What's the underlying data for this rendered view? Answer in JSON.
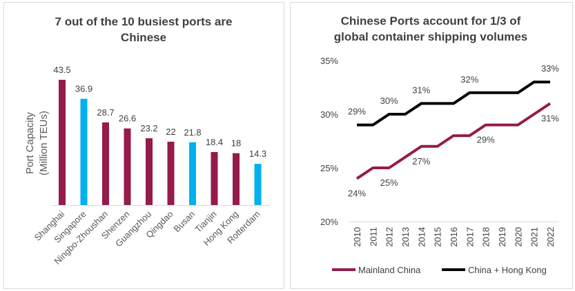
{
  "chart_data": [
    {
      "type": "bar",
      "title": "7 out of the 10 busiest ports are Chinese",
      "ylabel": "Port Capacity (Million TEUs)",
      "ylabel_lines": [
        "Port Capacity",
        "(Million TEUs)"
      ],
      "categories": [
        "Shanghai",
        "Singapore",
        "Ningbo-Zhoushan",
        "Shenzen",
        "Guangzhou",
        "Qingdao",
        "Busan",
        "Tianjin",
        "Hong Kong",
        "Rotterdam"
      ],
      "values": [
        43.5,
        36.9,
        28.7,
        26.6,
        23.2,
        22,
        21.8,
        18.4,
        18,
        14.3
      ],
      "value_labels": [
        "43.5",
        "36.9",
        "28.7",
        "26.6",
        "23.2",
        "22",
        "21.8",
        "18.4",
        "18",
        "14.3"
      ],
      "is_chinese": [
        true,
        false,
        true,
        true,
        true,
        true,
        false,
        true,
        true,
        false
      ],
      "colors": {
        "chinese": "#951B4A",
        "other": "#00B0F0"
      },
      "ylim": [
        0,
        43.5
      ],
      "grid": false
    },
    {
      "type": "line",
      "title": "Chinese Ports account for 1/3 of global container shipping volumes",
      "title_lines": [
        "Chinese Ports account for 1/3 of",
        "global container shipping volumes"
      ],
      "x": [
        2010,
        2011,
        2012,
        2013,
        2014,
        2015,
        2016,
        2017,
        2018,
        2019,
        2020,
        2021,
        2022
      ],
      "ylim": [
        20,
        35
      ],
      "yticks": [
        "20%",
        "25%",
        "30%",
        "35%"
      ],
      "legend": "bottom",
      "series": [
        {
          "name": "Mainland China",
          "color": "#951B4A",
          "values": [
            24,
            25,
            25,
            26,
            27,
            27,
            28,
            28,
            29,
            29,
            29,
            30,
            31
          ],
          "labels": [
            {
              "x": 2010,
              "text": "24%"
            },
            {
              "x": 2012,
              "text": "25%"
            },
            {
              "x": 2014,
              "text": "27%"
            },
            {
              "x": 2018,
              "text": "29%"
            },
            {
              "x": 2022,
              "text": "31%"
            }
          ]
        },
        {
          "name": "China + Hong Kong",
          "color": "#000000",
          "values": [
            29,
            29,
            30,
            30,
            31,
            31,
            31,
            32,
            32,
            32,
            32,
            33,
            33
          ],
          "labels": [
            {
              "x": 2010,
              "text": "29%"
            },
            {
              "x": 2012,
              "text": "30%"
            },
            {
              "x": 2014,
              "text": "31%"
            },
            {
              "x": 2017,
              "text": "32%"
            },
            {
              "x": 2022,
              "text": "33%"
            }
          ]
        }
      ]
    }
  ]
}
